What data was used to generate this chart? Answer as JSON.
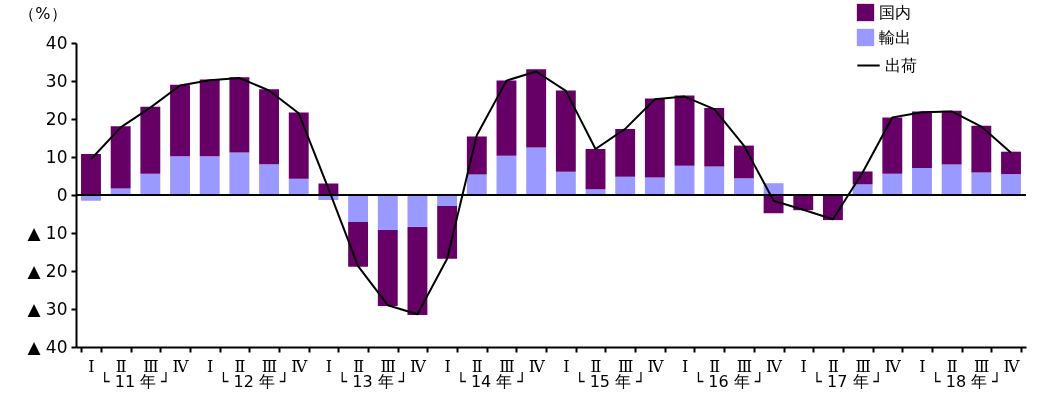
{
  "chart_data": {
    "type": "bar",
    "stacked": true,
    "ylabel": "（%）",
    "categories": [
      "Ⅰ",
      "Ⅱ",
      "Ⅲ",
      "Ⅳ",
      "Ⅰ",
      "Ⅱ",
      "Ⅲ",
      "Ⅳ",
      "Ⅰ",
      "Ⅱ",
      "Ⅲ",
      "Ⅳ",
      "Ⅰ",
      "Ⅱ",
      "Ⅲ",
      "Ⅳ",
      "Ⅰ",
      "Ⅱ",
      "Ⅲ",
      "Ⅳ",
      "Ⅰ",
      "Ⅱ",
      "Ⅲ",
      "Ⅳ",
      "Ⅰ",
      "Ⅱ",
      "Ⅲ",
      "Ⅳ",
      "Ⅰ",
      "Ⅱ",
      "Ⅲ",
      "Ⅳ"
    ],
    "series": [
      {
        "name": "輸出",
        "color": "#9999ff",
        "values": [
          -1.5,
          1.7,
          5.6,
          10.2,
          10.2,
          11.2,
          8.1,
          4.3,
          -1.3,
          -7.1,
          -9.2,
          -8.4,
          -2.9,
          5.4,
          10.3,
          12.5,
          6.1,
          1.5,
          4.8,
          4.6,
          7.7,
          7.5,
          4.4,
          3.1,
          0,
          0,
          2.8,
          5.6,
          7.1,
          8.0,
          5.9,
          5.5
        ]
      },
      {
        "name": "国内",
        "color": "#660066",
        "values": [
          10.8,
          16.4,
          17.6,
          18.8,
          20.2,
          19.8,
          19.7,
          17.4,
          3.0,
          -11.8,
          -20.0,
          -23.2,
          -13.9,
          10.0,
          19.8,
          20.6,
          21.4,
          10.6,
          12.6,
          20.8,
          18.5,
          15.4,
          8.6,
          -4.8,
          -4.0,
          -6.6,
          3.4,
          14.8,
          14.9,
          14.2,
          12.3,
          5.9
        ]
      },
      {
        "name": "出荷",
        "type": "line",
        "color": "#000000",
        "values": [
          9.4,
          17.8,
          23.0,
          28.8,
          30.2,
          30.8,
          27.5,
          21.5,
          1.7,
          -18.7,
          -29.0,
          -31.4,
          -16.8,
          15.7,
          30.1,
          32.5,
          27.4,
          12.1,
          17.4,
          25.2,
          25.9,
          22.6,
          13.0,
          -1.5,
          -3.9,
          -6.4,
          5.9,
          20.4,
          21.8,
          22.0,
          18.0,
          11.1
        ]
      }
    ],
    "ylim": [
      -40,
      40
    ],
    "yticks": [
      {
        "value": -40,
        "label": "▲ 40"
      },
      {
        "value": -30,
        "label": "▲ 30"
      },
      {
        "value": -20,
        "label": "▲ 20"
      },
      {
        "value": -10,
        "label": "▲ 10"
      },
      0,
      10,
      20,
      30,
      40
    ],
    "ref_lines": [
      {
        "axis": "y",
        "value": 0,
        "color": "#000000"
      }
    ],
    "annotations": [
      "└ 11 年 ┘",
      "└ 12 年 ┘",
      "└ 13 年 ┘",
      "└ 14 年 ┘",
      "└ 15 年 ┘",
      "└ 16 年 ┘",
      "└ 17 年 ┘",
      "└ 18 年 ┘"
    ],
    "legend": "top right",
    "grid": false,
    "marker": "none",
    "line_style": "solid"
  }
}
